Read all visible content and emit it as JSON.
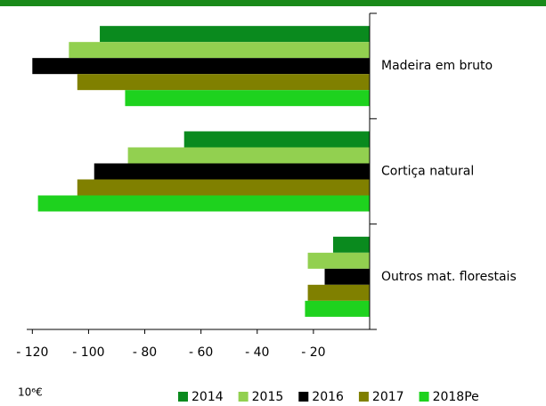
{
  "chart_data": {
    "type": "hbar",
    "categories": [
      "Madeira em bruto",
      "Cortiça natural",
      "Outros mat. florestais"
    ],
    "series": [
      {
        "name": "2014",
        "color": "#0a8a1e",
        "values": [
          -96,
          -66,
          -13
        ]
      },
      {
        "name": "2015",
        "color": "#92d050",
        "values": [
          -107,
          -86,
          -22
        ]
      },
      {
        "name": "2016",
        "color": "#000000",
        "values": [
          -120,
          -98,
          -16
        ]
      },
      {
        "name": "2017",
        "color": "#808000",
        "values": [
          -104,
          -104,
          -22
        ]
      },
      {
        "name": "2018Pe",
        "color": "#1ed21e",
        "values": [
          -87,
          -118,
          -23
        ]
      }
    ],
    "xlabel": "10⁶€",
    "xlim": [
      -122,
      0
    ],
    "xticks": [
      {
        "value": -120,
        "label": "- 120"
      },
      {
        "value": -100,
        "label": "- 100"
      },
      {
        "value": -80,
        "label": "- 80"
      },
      {
        "value": -60,
        "label": "- 60"
      },
      {
        "value": -40,
        "label": "- 40"
      },
      {
        "value": -20,
        "label": "- 20"
      }
    ],
    "legend": "bottom"
  }
}
